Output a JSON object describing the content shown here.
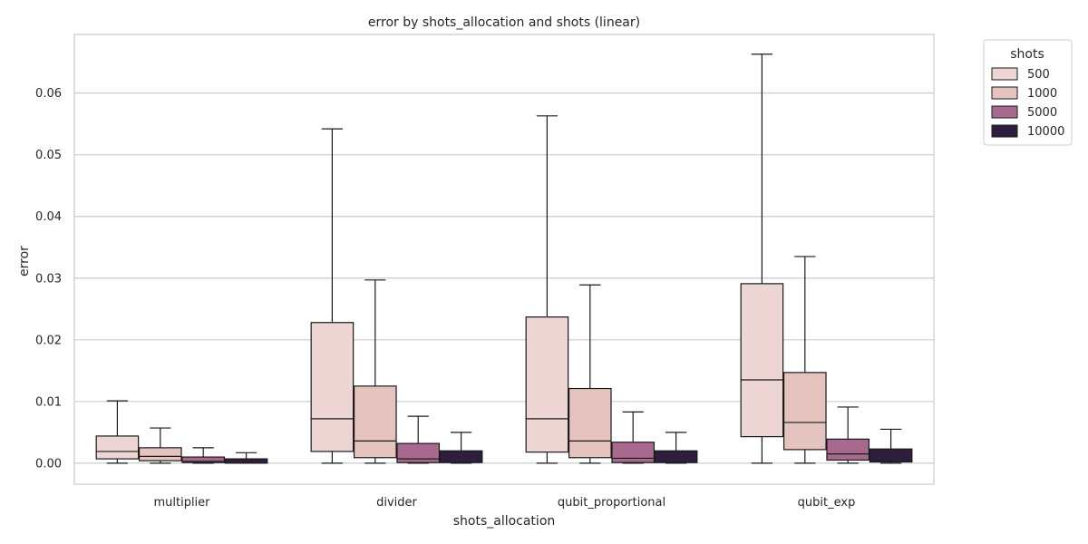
{
  "chart_data": {
    "type": "box",
    "title": "error by shots_allocation and shots (linear)",
    "xlabel": "shots_allocation",
    "ylabel": "error",
    "categories": [
      "multiplier",
      "divider",
      "qubit_proportional",
      "qubit_exp"
    ],
    "ylim": [
      -0.0034,
      0.0695
    ],
    "yticks": [
      0.0,
      0.01,
      0.02,
      0.03,
      0.04,
      0.05,
      0.06
    ],
    "ytick_labels": [
      "0.00",
      "0.01",
      "0.02",
      "0.03",
      "0.04",
      "0.05",
      "0.06"
    ],
    "grid": "y",
    "legend": {
      "title": "shots",
      "position": "outside-right-top"
    },
    "series": [
      {
        "name": "500",
        "color": "#ecd5d2",
        "boxes": [
          {
            "whislo": 0.0,
            "q1": 0.0007,
            "med": 0.0019,
            "q3": 0.0044,
            "whishi": 0.0101
          },
          {
            "whislo": 0.0,
            "q1": 0.0019,
            "med": 0.0072,
            "q3": 0.0228,
            "whishi": 0.0542
          },
          {
            "whislo": 0.0,
            "q1": 0.0018,
            "med": 0.0072,
            "q3": 0.0237,
            "whishi": 0.0563
          },
          {
            "whislo": 0.0,
            "q1": 0.0043,
            "med": 0.0135,
            "q3": 0.0291,
            "whishi": 0.0663
          }
        ]
      },
      {
        "name": "1000",
        "color": "#e5c4c0",
        "boxes": [
          {
            "whislo": 0.0,
            "q1": 0.0004,
            "med": 0.0011,
            "q3": 0.0025,
            "whishi": 0.0057
          },
          {
            "whislo": 0.0,
            "q1": 0.0009,
            "med": 0.0036,
            "q3": 0.0125,
            "whishi": 0.0297
          },
          {
            "whislo": 0.0,
            "q1": 0.0009,
            "med": 0.0036,
            "q3": 0.0121,
            "whishi": 0.0289
          },
          {
            "whislo": 0.0,
            "q1": 0.0022,
            "med": 0.0066,
            "q3": 0.0147,
            "whishi": 0.0335
          }
        ]
      },
      {
        "name": "5000",
        "color": "#a8698f",
        "boxes": [
          {
            "whislo": 0.0,
            "q1": 0.0001,
            "med": 0.0003,
            "q3": 0.001,
            "whishi": 0.0025
          },
          {
            "whislo": 0.0,
            "q1": 0.0001,
            "med": 0.0007,
            "q3": 0.0032,
            "whishi": 0.0076
          },
          {
            "whislo": 0.0,
            "q1": 0.0001,
            "med": 0.0008,
            "q3": 0.0034,
            "whishi": 0.0083
          },
          {
            "whislo": 0.0,
            "q1": 0.0005,
            "med": 0.0015,
            "q3": 0.0039,
            "whishi": 0.0091
          }
        ]
      },
      {
        "name": "10000",
        "color": "#2d1e3e",
        "boxes": [
          {
            "whislo": 0.0,
            "q1": 0.0,
            "med": 0.0002,
            "q3": 0.0007,
            "whishi": 0.0017
          },
          {
            "whislo": 0.0,
            "q1": 0.0001,
            "med": 0.0004,
            "q3": 0.002,
            "whishi": 0.005
          },
          {
            "whislo": 0.0,
            "q1": 0.0001,
            "med": 0.0004,
            "q3": 0.002,
            "whishi": 0.005
          },
          {
            "whislo": 0.0,
            "q1": 0.0002,
            "med": 0.0006,
            "q3": 0.0023,
            "whishi": 0.0055
          }
        ]
      }
    ]
  }
}
